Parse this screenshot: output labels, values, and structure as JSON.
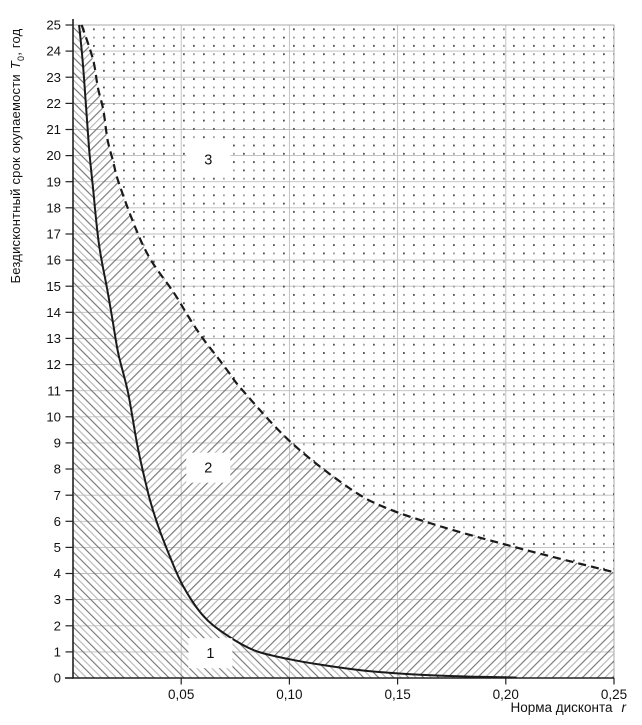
{
  "page": {
    "background": "#ffffff"
  },
  "y_axis": {
    "title_prefix": "Бездисконтный срок окупаемости",
    "title_symbol": "T",
    "title_sub": "0",
    "title_suffix": ", год"
  },
  "x_axis": {
    "title_text": "Норма дисконта",
    "title_symbol": "r"
  },
  "colors": {
    "background": "#ffffff",
    "curve": "#1a1a1a",
    "grid": "#bdbdbd",
    "border": "#a9a9a9",
    "axis": "#222222",
    "hatch_dark": "#6e6e6e",
    "hatch_light": "#b4b4b4",
    "dot_dark": "#4d4d4d",
    "dot_light": "#9b9b9b",
    "text": "#111111",
    "label_bg": "#ffffff"
  },
  "chart_data": {
    "type": "line",
    "title": "",
    "xlabel": "Норма дисконта r",
    "ylabel": "Бездисконтный срок окупаемости T0, год",
    "xlim": [
      0,
      0.25
    ],
    "ylim": [
      0,
      25
    ],
    "grid": true,
    "legend": "none",
    "x_ticks": {
      "values": [
        0.05,
        0.1,
        0.15,
        0.2,
        0.25
      ],
      "labels": [
        "0,05",
        "0,10",
        "0,15",
        "0,20",
        "0,25"
      ]
    },
    "y_ticks": {
      "values": [
        0,
        1,
        2,
        3,
        4,
        5,
        6,
        7,
        8,
        9,
        10,
        11,
        12,
        13,
        14,
        15,
        16,
        17,
        18,
        19,
        20,
        21,
        22,
        23,
        24,
        25
      ],
      "labels": [
        "0",
        "1",
        "2",
        "3",
        "4",
        "5",
        "6",
        "7",
        "8",
        "9",
        "10",
        "11",
        "12",
        "13",
        "14",
        "15",
        "16",
        "17",
        "18",
        "19",
        "20",
        "21",
        "22",
        "23",
        "24",
        "25"
      ]
    },
    "series": [
      {
        "name": "lower-boundary-solid",
        "style": "solid",
        "points": [
          [
            0.0028,
            25
          ],
          [
            0.0045,
            23.6
          ],
          [
            0.006,
            21.9
          ],
          [
            0.0075,
            20.2
          ],
          [
            0.0092,
            18.8
          ],
          [
            0.012,
            16.6
          ],
          [
            0.016,
            14.8
          ],
          [
            0.0185,
            13.6
          ],
          [
            0.021,
            12.4
          ],
          [
            0.0255,
            10.9
          ],
          [
            0.03,
            8.8
          ],
          [
            0.035,
            7.0
          ],
          [
            0.039,
            5.9
          ],
          [
            0.045,
            4.6
          ],
          [
            0.051,
            3.5
          ],
          [
            0.06,
            2.4
          ],
          [
            0.07,
            1.7
          ],
          [
            0.084,
            1.05
          ],
          [
            0.1,
            0.72
          ],
          [
            0.115,
            0.5
          ],
          [
            0.135,
            0.28
          ],
          [
            0.155,
            0.15
          ],
          [
            0.18,
            0.06
          ],
          [
            0.205,
            0.02
          ]
        ]
      },
      {
        "name": "upper-boundary-dashed",
        "style": "dashed",
        "points": [
          [
            0.004,
            25
          ],
          [
            0.0092,
            23.7
          ],
          [
            0.0115,
            22.6
          ],
          [
            0.014,
            21.75
          ],
          [
            0.016,
            20.6
          ],
          [
            0.0185,
            19.8
          ],
          [
            0.021,
            19.0
          ],
          [
            0.029,
            17.2
          ],
          [
            0.036,
            16.0
          ],
          [
            0.0466,
            14.75
          ],
          [
            0.0536,
            13.8
          ],
          [
            0.06,
            13.0
          ],
          [
            0.067,
            12.25
          ],
          [
            0.072,
            11.7
          ],
          [
            0.0785,
            11.0
          ],
          [
            0.101,
            9.0
          ],
          [
            0.128,
            7.25
          ],
          [
            0.145,
            6.5
          ],
          [
            0.17,
            5.8
          ],
          [
            0.198,
            5.15
          ],
          [
            0.221,
            4.65
          ],
          [
            0.25,
            4.05
          ]
        ]
      }
    ],
    "regions": [
      {
        "label": "1",
        "pattern": "diagonal-hatch-up",
        "label_pos": {
          "r": 0.0635,
          "T": 0.95
        }
      },
      {
        "label": "2",
        "pattern": "diagonal-hatch-down",
        "label_pos": {
          "r": 0.0625,
          "T": 8.05
        }
      },
      {
        "label": "3",
        "pattern": "dot-grid",
        "label_pos": {
          "r": 0.0625,
          "T": 19.85
        }
      }
    ]
  }
}
